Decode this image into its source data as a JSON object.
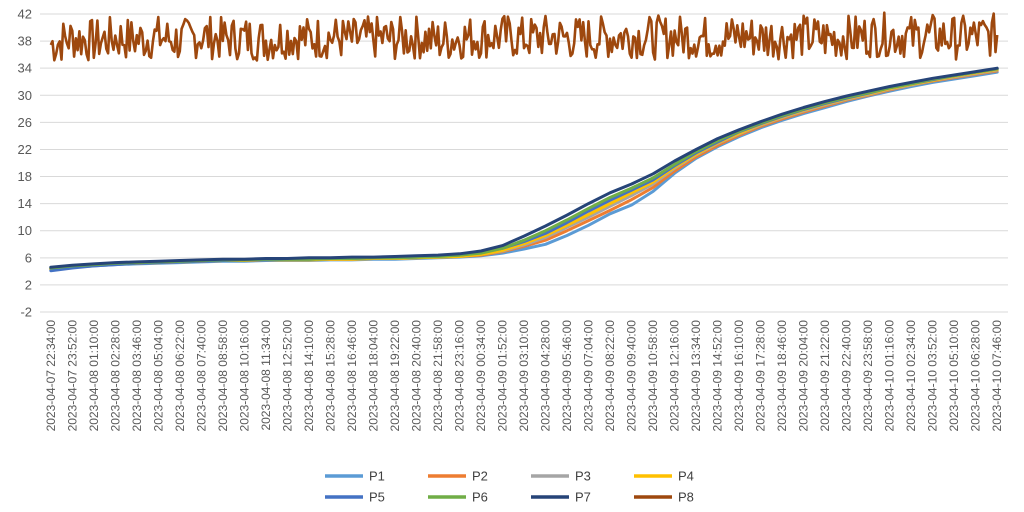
{
  "chart_data": {
    "type": "line",
    "title": "",
    "xlabel": "",
    "ylabel": "",
    "ylim": [
      -2,
      42
    ],
    "yticks": [
      -2,
      2,
      6,
      10,
      14,
      18,
      22,
      26,
      30,
      34,
      38,
      42
    ],
    "grid": "horizontal",
    "legend_position": "bottom",
    "x": [
      "2023-04-07 22:34:00",
      "2023-04-07 23:52:00",
      "2023-04-08 01:10:00",
      "2023-04-08 02:28:00",
      "2023-04-08 03:46:00",
      "2023-04-08 05:04:00",
      "2023-04-08 06:22:00",
      "2023-04-08 07:40:00",
      "2023-04-08 08:58:00",
      "2023-04-08 10:16:00",
      "2023-04-08 11:34:00",
      "2023-04-08 12:52:00",
      "2023-04-08 14:10:00",
      "2023-04-08 15:28:00",
      "2023-04-08 16:46:00",
      "2023-04-08 18:04:00",
      "2023-04-08 19:22:00",
      "2023-04-08 20:40:00",
      "2023-04-08 21:58:00",
      "2023-04-08 23:16:00",
      "2023-04-09 00:34:00",
      "2023-04-09 01:52:00",
      "2023-04-09 03:10:00",
      "2023-04-09 04:28:00",
      "2023-04-09 05:46:00",
      "2023-04-09 07:04:00",
      "2023-04-09 08:22:00",
      "2023-04-09 09:40:00",
      "2023-04-09 10:58:00",
      "2023-04-09 12:16:00",
      "2023-04-09 13:34:00",
      "2023-04-09 14:52:00",
      "2023-04-09 16:10:00",
      "2023-04-09 17:28:00",
      "2023-04-09 18:46:00",
      "2023-04-09 20:04:00",
      "2023-04-09 21:22:00",
      "2023-04-09 22:40:00",
      "2023-04-09 23:58:00",
      "2023-04-10 01:16:00",
      "2023-04-10 02:34:00",
      "2023-04-10 03:52:00",
      "2023-04-10 05:10:00",
      "2023-04-10 06:28:00",
      "2023-04-10 07:46:00"
    ],
    "series": [
      {
        "name": "P1",
        "color": "#5B9BD5",
        "values": [
          4.3,
          4.6,
          4.8,
          5.0,
          5.1,
          5.2,
          5.3,
          5.4,
          5.5,
          5.5,
          5.6,
          5.6,
          5.6,
          5.7,
          5.7,
          5.8,
          5.8,
          5.9,
          6.0,
          6.1,
          6.3,
          6.7,
          7.3,
          8.0,
          9.3,
          10.8,
          12.5,
          13.8,
          15.8,
          18.5,
          20.7,
          22.4,
          23.9,
          25.2,
          26.3,
          27.3,
          28.2,
          29.1,
          29.9,
          30.6,
          31.3,
          31.9,
          32.4,
          32.9,
          33.4
        ]
      },
      {
        "name": "P2",
        "color": "#ED7D31",
        "values": [
          4.4,
          4.7,
          4.9,
          5.1,
          5.2,
          5.3,
          5.4,
          5.5,
          5.6,
          5.6,
          5.7,
          5.7,
          5.7,
          5.8,
          5.8,
          5.9,
          5.9,
          6.0,
          6.1,
          6.2,
          6.4,
          6.9,
          7.7,
          8.6,
          10.0,
          11.5,
          13.0,
          14.6,
          16.4,
          18.8,
          20.9,
          22.6,
          24.1,
          25.4,
          26.5,
          27.5,
          28.4,
          29.3,
          30.0,
          30.8,
          31.5,
          32.1,
          32.6,
          33.1,
          33.6
        ]
      },
      {
        "name": "P3",
        "color": "#A5A5A5",
        "values": [
          4.4,
          4.7,
          4.9,
          5.1,
          5.2,
          5.3,
          5.4,
          5.5,
          5.6,
          5.6,
          5.7,
          5.7,
          5.7,
          5.8,
          5.8,
          5.9,
          5.9,
          6.0,
          6.1,
          6.2,
          6.5,
          7.0,
          7.9,
          9.0,
          10.5,
          12.0,
          13.6,
          15.2,
          16.9,
          19.2,
          21.2,
          22.9,
          24.3,
          25.6,
          26.7,
          27.7,
          28.6,
          29.4,
          30.1,
          30.9,
          31.5,
          32.2,
          32.7,
          33.2,
          33.7
        ]
      },
      {
        "name": "P4",
        "color": "#FFC000",
        "values": [
          4.4,
          4.7,
          4.9,
          5.1,
          5.2,
          5.3,
          5.4,
          5.5,
          5.6,
          5.6,
          5.7,
          5.7,
          5.7,
          5.8,
          5.8,
          5.9,
          5.9,
          6.0,
          6.1,
          6.2,
          6.5,
          7.1,
          8.1,
          9.3,
          10.8,
          12.4,
          14.0,
          15.6,
          17.2,
          19.4,
          21.3,
          23.0,
          24.4,
          25.7,
          26.8,
          27.8,
          28.7,
          29.5,
          30.2,
          31.0,
          31.6,
          32.2,
          32.8,
          33.3,
          33.8
        ]
      },
      {
        "name": "P5",
        "color": "#4472C4",
        "values": [
          4.1,
          4.5,
          4.8,
          5.0,
          5.2,
          5.3,
          5.4,
          5.5,
          5.6,
          5.7,
          5.7,
          5.8,
          5.8,
          5.9,
          5.9,
          6.0,
          6.0,
          6.1,
          6.3,
          6.4,
          6.8,
          7.4,
          8.4,
          9.6,
          11.2,
          12.9,
          14.5,
          16.0,
          17.5,
          19.6,
          21.5,
          23.1,
          24.6,
          25.8,
          26.9,
          27.9,
          28.8,
          29.6,
          30.3,
          31.1,
          31.7,
          32.3,
          32.9,
          33.4,
          33.9
        ]
      },
      {
        "name": "P6",
        "color": "#70AD47",
        "values": [
          4.5,
          4.8,
          5.0,
          5.2,
          5.3,
          5.4,
          5.5,
          5.6,
          5.7,
          5.7,
          5.8,
          5.8,
          5.8,
          5.9,
          5.9,
          6.0,
          6.0,
          6.1,
          6.2,
          6.4,
          6.7,
          7.4,
          8.6,
          10.0,
          11.6,
          13.3,
          14.9,
          16.3,
          17.8,
          19.8,
          21.7,
          23.3,
          24.7,
          25.9,
          27.0,
          28.0,
          28.9,
          29.7,
          30.4,
          31.1,
          31.7,
          32.4,
          32.9,
          33.4,
          33.9
        ]
      },
      {
        "name": "P7",
        "color": "#264478",
        "values": [
          4.6,
          4.9,
          5.1,
          5.3,
          5.4,
          5.5,
          5.6,
          5.7,
          5.8,
          5.8,
          5.9,
          5.9,
          6.0,
          6.0,
          6.1,
          6.1,
          6.2,
          6.3,
          6.4,
          6.6,
          7.0,
          7.8,
          9.2,
          10.7,
          12.3,
          14.0,
          15.6,
          16.9,
          18.4,
          20.3,
          22.0,
          23.6,
          24.9,
          26.1,
          27.2,
          28.2,
          29.1,
          29.9,
          30.6,
          31.3,
          31.9,
          32.5,
          33.0,
          33.5,
          34.0
        ]
      },
      {
        "name": "P8",
        "color": "#9E480E",
        "values": [
          37.5,
          38.5,
          38.0,
          38.5,
          38.2,
          38.6,
          38.0,
          38.8,
          38.3,
          38.5,
          38.1,
          38.7,
          38.4,
          38.6,
          38.2,
          38.5,
          38.3,
          38.6,
          38.0,
          38.5,
          38.6,
          38.8,
          38.4,
          38.7,
          38.5,
          38.4,
          38.6,
          38.8,
          38.5,
          38.7,
          38.6,
          38.4,
          38.8,
          38.5,
          38.6,
          38.7,
          38.4,
          38.6,
          38.8,
          39.0,
          38.6,
          38.8,
          38.5,
          38.7,
          38.9
        ]
      }
    ]
  }
}
